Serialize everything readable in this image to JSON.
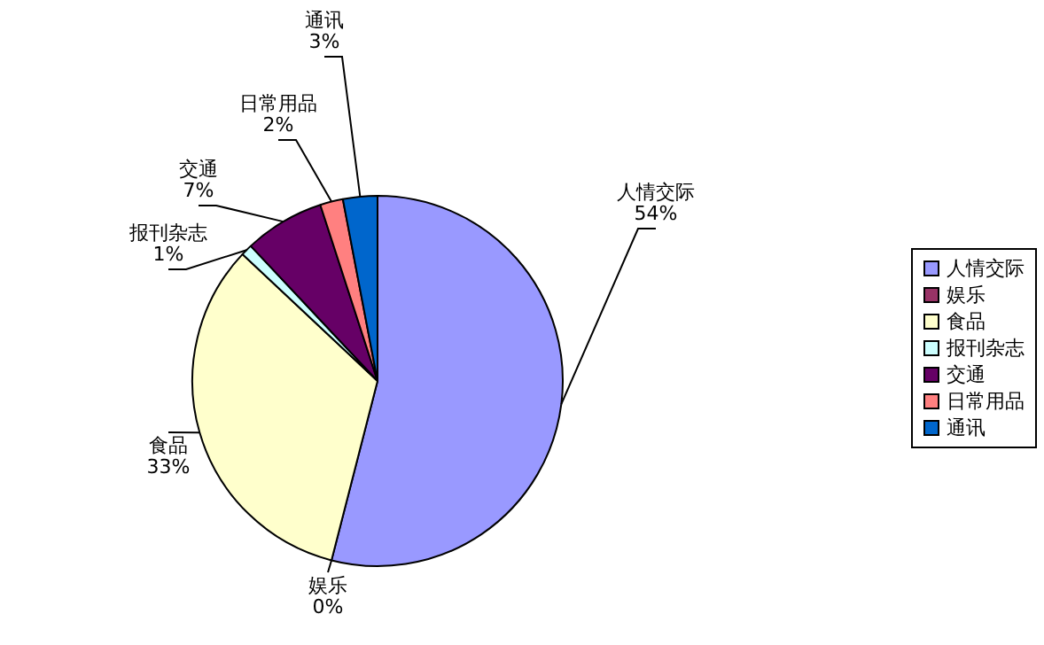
{
  "chart_data": {
    "type": "pie",
    "categories": [
      "人情交际",
      "娱乐",
      "食品",
      "报刊杂志",
      "交通",
      "日常用品",
      "通讯"
    ],
    "values": [
      54,
      0,
      33,
      1,
      7,
      2,
      3
    ],
    "value_labels": [
      "54%",
      "0%",
      "33%",
      "1%",
      "7%",
      "2%",
      "3%"
    ],
    "colors": [
      "#9999ff",
      "#993366",
      "#ffffcc",
      "#ccffff",
      "#660066",
      "#ff8080",
      "#0066cc"
    ],
    "legend": "right"
  }
}
